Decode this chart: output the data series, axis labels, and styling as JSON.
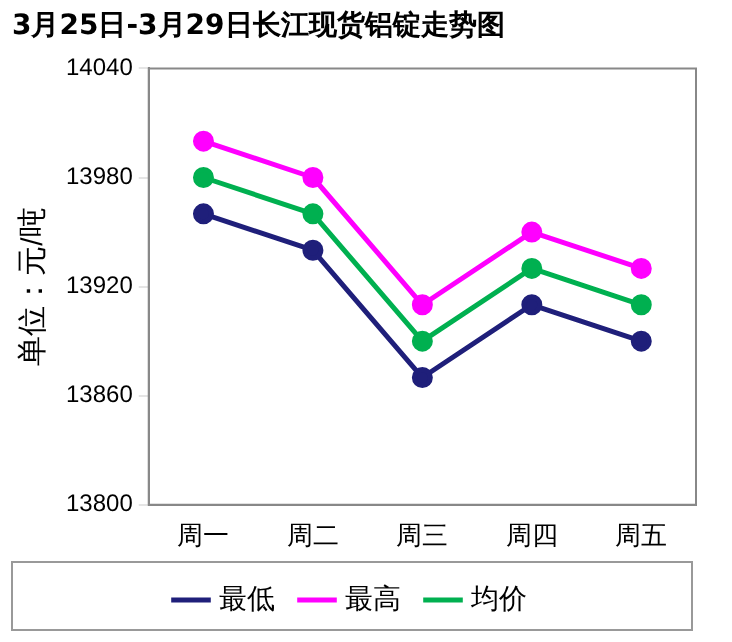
{
  "chart_data": {
    "type": "line",
    "title": "3月25日-3月29日长江现货铝锭走势图",
    "ylabel": "单位：元/吨",
    "categories": [
      "周一",
      "周二",
      "周三",
      "周四",
      "周五"
    ],
    "series": [
      {
        "name": "最低",
        "color": "#1f1f7a",
        "values": [
          13960,
          13940,
          13870,
          13910,
          13890
        ]
      },
      {
        "name": "最高",
        "color": "#ff00ff",
        "values": [
          14000,
          13980,
          13910,
          13950,
          13930
        ]
      },
      {
        "name": "均价",
        "color": "#00b050",
        "values": [
          13980,
          13960,
          13890,
          13930,
          13910
        ]
      }
    ],
    "ylim": [
      13800,
      14040
    ],
    "yticks": [
      13800,
      13860,
      13920,
      13980,
      14040
    ],
    "legend": "bottom",
    "marker": "circle",
    "line_style": "solid"
  }
}
